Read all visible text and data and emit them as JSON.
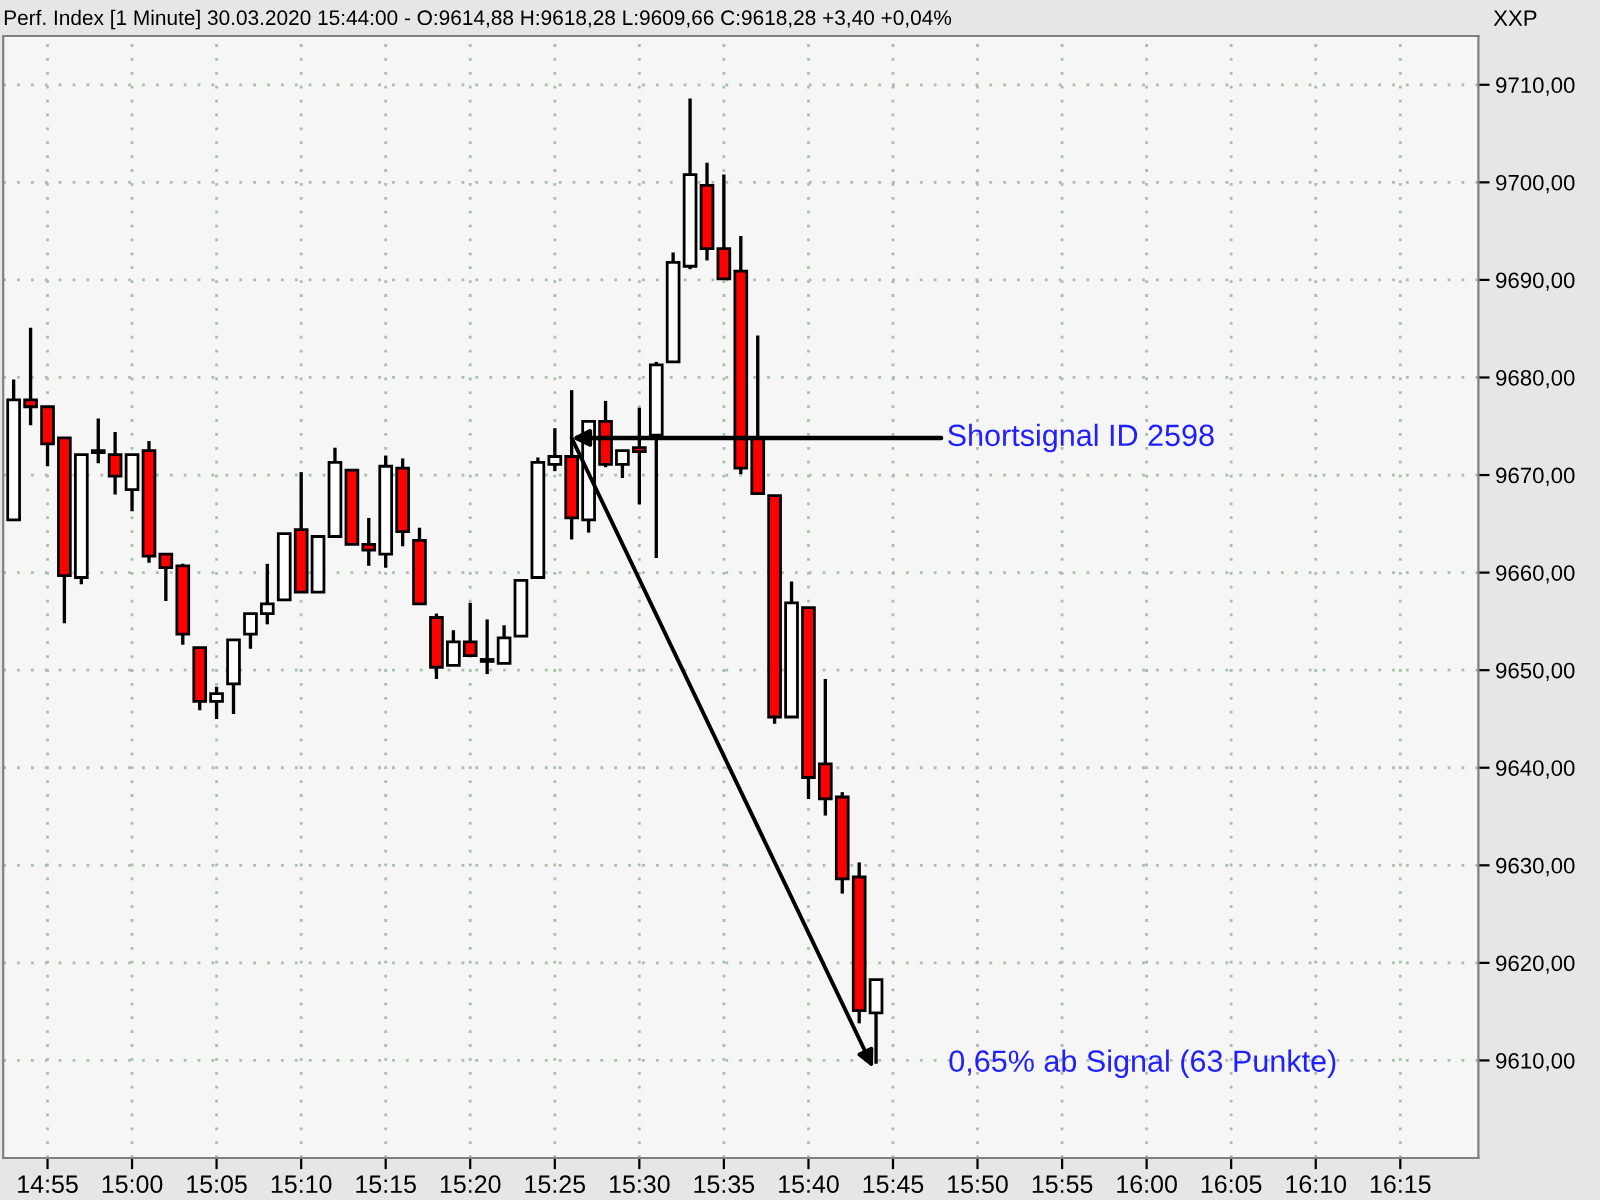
{
  "chart_data": {
    "type": "candlestick",
    "title": "Perf. Index [1 Minute] 30.03.2020 15:44:00 - O:9614,88 H:9618,28 L:9609,66 C:9618,28 +3,40 +0,04%",
    "x": [
      14.8833,
      14.9,
      14.9167,
      14.9333,
      14.95,
      14.9667,
      14.9833,
      15.0,
      15.0167,
      15.0333,
      15.05,
      15.0667,
      15.0833,
      15.1,
      15.1167,
      15.1333,
      15.15,
      15.1667,
      15.1833,
      15.2,
      15.2167,
      15.2333,
      15.25,
      15.2667,
      15.2833,
      15.3,
      15.3167,
      15.3333,
      15.35,
      15.3667,
      15.3833,
      15.4,
      15.4167,
      15.4333,
      15.45,
      15.4667,
      15.4833,
      15.5,
      15.5167,
      15.5333,
      15.55,
      15.5667,
      15.5833,
      15.6,
      15.6167,
      15.6333,
      15.65,
      15.6667,
      15.6833,
      15.7,
      15.7167,
      15.7333
    ],
    "ohlc": [
      [
        9665.4,
        9679.8,
        9665.4,
        9677.7
      ],
      [
        9677.7,
        9685.1,
        9675.1,
        9677.0
      ],
      [
        9677.0,
        9677.0,
        9670.9,
        9673.2
      ],
      [
        9673.8,
        9673.8,
        9654.8,
        9659.7
      ],
      [
        9659.5,
        9672.1,
        9658.8,
        9672.1
      ],
      [
        9672.3,
        9675.8,
        9671.2,
        9672.5
      ],
      [
        9672.1,
        9674.4,
        9668.0,
        9669.9
      ],
      [
        9668.5,
        9672.1,
        9666.3,
        9672.1
      ],
      [
        9672.5,
        9673.5,
        9661.0,
        9661.7
      ],
      [
        9661.9,
        9661.9,
        9657.1,
        9660.5
      ],
      [
        9660.7,
        9660.9,
        9652.6,
        9653.7
      ],
      [
        9652.3,
        9652.3,
        9645.9,
        9646.8
      ],
      [
        9646.8,
        9648.3,
        9645.0,
        9647.6
      ],
      [
        9648.6,
        9653.1,
        9645.5,
        9653.1
      ],
      [
        9653.7,
        9655.8,
        9652.2,
        9655.8
      ],
      [
        9655.8,
        9660.9,
        9654.7,
        9656.8
      ],
      [
        9657.2,
        9664.0,
        9657.2,
        9664.0
      ],
      [
        9664.4,
        9670.3,
        9658.0,
        9658.0
      ],
      [
        9658.0,
        9663.7,
        9658.0,
        9663.7
      ],
      [
        9663.7,
        9672.8,
        9663.7,
        9671.3
      ],
      [
        9670.5,
        9670.5,
        9662.9,
        9662.9
      ],
      [
        9662.9,
        9665.6,
        9660.7,
        9662.3
      ],
      [
        9661.9,
        9672.0,
        9660.5,
        9670.9
      ],
      [
        9670.7,
        9671.7,
        9662.7,
        9664.2
      ],
      [
        9663.3,
        9664.6,
        9656.8,
        9656.8
      ],
      [
        9655.4,
        9655.8,
        9649.1,
        9650.3
      ],
      [
        9650.5,
        9654.1,
        9650.5,
        9652.9
      ],
      [
        9652.9,
        9656.9,
        9651.5,
        9651.5
      ],
      [
        9650.9,
        9655.2,
        9649.6,
        9651.1
      ],
      [
        9650.7,
        9654.6,
        9650.7,
        9653.3
      ],
      [
        9653.5,
        9659.2,
        9653.5,
        9659.2
      ],
      [
        9659.5,
        9671.8,
        9659.5,
        9671.3
      ],
      [
        9671.1,
        9674.8,
        9670.4,
        9671.9
      ],
      [
        9671.9,
        9678.7,
        9663.4,
        9665.6
      ],
      [
        9665.4,
        9675.5,
        9664.1,
        9675.5
      ],
      [
        9675.5,
        9677.6,
        9670.8,
        9671.1
      ],
      [
        9671.1,
        9672.5,
        9669.7,
        9672.5
      ],
      [
        9672.8,
        9676.9,
        9667.0,
        9672.4
      ],
      [
        9674.1,
        9681.6,
        9661.5,
        9681.3
      ],
      [
        9681.6,
        9692.8,
        9681.6,
        9691.8
      ],
      [
        9691.4,
        9708.6,
        9691.1,
        9700.8
      ],
      [
        9699.7,
        9702.0,
        9692.0,
        9693.2
      ],
      [
        9693.2,
        9700.8,
        9690.1,
        9690.1
      ],
      [
        9690.9,
        9694.5,
        9670.1,
        9670.7
      ],
      [
        9673.8,
        9684.3,
        9668.1,
        9668.1
      ],
      [
        9667.9,
        9667.9,
        9644.5,
        9645.2
      ],
      [
        9645.2,
        9659.1,
        9645.2,
        9656.9
      ],
      [
        9656.4,
        9656.4,
        9636.8,
        9639.0
      ],
      [
        9640.4,
        9649.1,
        9635.1,
        9636.8
      ],
      [
        9637.0,
        9637.5,
        9627.1,
        9628.6
      ],
      [
        9628.8,
        9630.3,
        9613.8,
        9615.1
      ],
      [
        9614.88,
        9618.28,
        9609.66,
        9618.28
      ]
    ],
    "colors": [
      "#ffffff",
      "#ff0000",
      "#ff0000",
      "#ff0000",
      "#ffffff",
      "#ffffff",
      "#ff0000",
      "#ffffff",
      "#ff0000",
      "#ff0000",
      "#ff0000",
      "#ff0000",
      "#ffffff",
      "#ffffff",
      "#ffffff",
      "#ffffff",
      "#ffffff",
      "#ff0000",
      "#ffffff",
      "#ffffff",
      "#ff0000",
      "#ff0000",
      "#ffffff",
      "#ff0000",
      "#ff0000",
      "#ff0000",
      "#ffffff",
      "#ff0000",
      "#ffffff",
      "#ffffff",
      "#ffffff",
      "#ffffff",
      "#ffffff",
      "#ff0000",
      "#ffffff",
      "#ff0000",
      "#ffffff",
      "#ff0000",
      "#ffffff",
      "#ffffff",
      "#ffffff",
      "#ff0000",
      "#ff0000",
      "#ff0000",
      "#ff0000",
      "#ff0000",
      "#ffffff",
      "#ff0000",
      "#ff0000",
      "#ff0000",
      "#ff0000",
      "#ffffff"
    ],
    "xlim": [
      14.873,
      16.327
    ],
    "xticks": [
      {
        "value": 14.9167,
        "label": "14:55"
      },
      {
        "value": 15.0,
        "label": "15:00"
      },
      {
        "value": 15.0833,
        "label": "15:05"
      },
      {
        "value": 15.1667,
        "label": "15:10"
      },
      {
        "value": 15.25,
        "label": "15:15"
      },
      {
        "value": 15.3333,
        "label": "15:20"
      },
      {
        "value": 15.4167,
        "label": "15:25"
      },
      {
        "value": 15.5,
        "label": "15:30"
      },
      {
        "value": 15.5833,
        "label": "15:35"
      },
      {
        "value": 15.6667,
        "label": "15:40"
      },
      {
        "value": 15.75,
        "label": "15:45"
      },
      {
        "value": 15.8333,
        "label": "15:50"
      },
      {
        "value": 15.9167,
        "label": "15:55"
      },
      {
        "value": 16.0,
        "label": "16:00"
      },
      {
        "value": 16.0833,
        "label": "16:05"
      },
      {
        "value": 16.1667,
        "label": "16:10"
      },
      {
        "value": 16.25,
        "label": "16:15"
      }
    ],
    "ylim": [
      9600,
      9715
    ],
    "yticks": [
      {
        "value": 9610,
        "label": "9610,00"
      },
      {
        "value": 9620,
        "label": "9620,00"
      },
      {
        "value": 9630,
        "label": "9630,00"
      },
      {
        "value": 9640,
        "label": "9640,00"
      },
      {
        "value": 9650,
        "label": "9650,00"
      },
      {
        "value": 9660,
        "label": "9660,00"
      },
      {
        "value": 9670,
        "label": "9670,00"
      },
      {
        "value": 9680,
        "label": "9680,00"
      },
      {
        "value": 9690,
        "label": "9690,00"
      },
      {
        "value": 9700,
        "label": "9700,00"
      },
      {
        "value": 9710,
        "label": "9710,00"
      }
    ],
    "grid": true,
    "annotations": [
      "XXP",
      {
        "text": "Shortsignal ID 2598",
        "x": 15.4333,
        "y": 9673.8
      },
      "0,65% ab Signal (63 Punkte)"
    ]
  }
}
